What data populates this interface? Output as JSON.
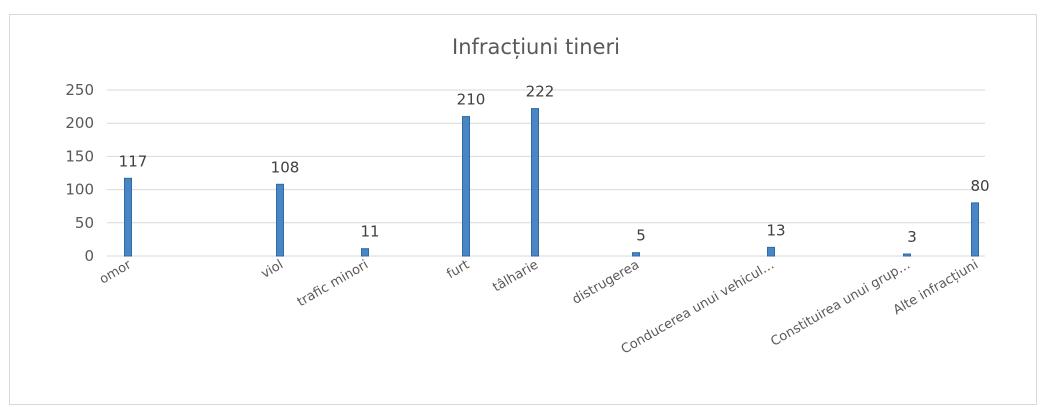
{
  "chart_data": {
    "type": "bar",
    "title": "Infracțiuni tineri",
    "categories": [
      "omor",
      "viol",
      "trafic minori",
      "furt",
      "tâlharie",
      "distrugerea",
      "Conducerea unui vehicul…",
      "Constituirea unui grup…",
      "Alte infracțiuni"
    ],
    "values": [
      117,
      108,
      11,
      210,
      222,
      5,
      13,
      3,
      80
    ],
    "ylim": [
      0,
      250
    ],
    "yticks": [
      0,
      50,
      100,
      150,
      200,
      250
    ],
    "grid": true,
    "legend": "none",
    "xlabel": "",
    "ylabel": "",
    "colors": {
      "bar": "#4a86c5",
      "bar_edge": "#2e6aa3",
      "grid": "#d9d9d9",
      "text": "#595959"
    }
  }
}
